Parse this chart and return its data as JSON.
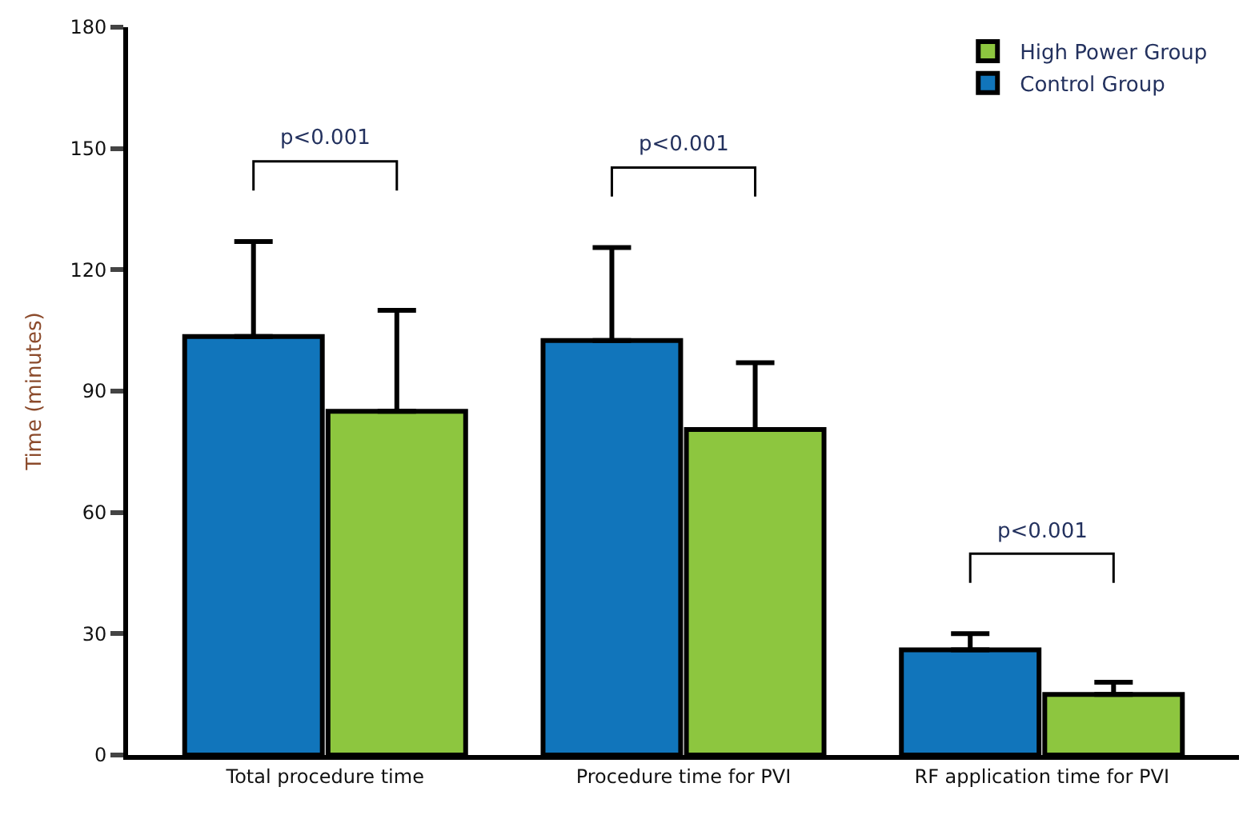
{
  "chart_data": {
    "type": "bar",
    "ylabel": "Time (minutes)",
    "categories": [
      "Total procedure time",
      "Procedure time for PVI",
      "RF application time for PVI"
    ],
    "series": [
      {
        "name": "Control Group",
        "color": "#1175bb",
        "values": [
          103.5,
          102.5,
          26
        ],
        "errors": [
          [
            103.5,
            127
          ],
          [
            102.5,
            125.5
          ],
          [
            26,
            30
          ]
        ]
      },
      {
        "name": "High Power Group",
        "color": "#8dc63f",
        "values": [
          85,
          80.5,
          15
        ],
        "errors": [
          [
            85,
            110
          ],
          [
            80.5,
            97
          ],
          [
            15,
            18
          ]
        ]
      }
    ],
    "ylim": [
      0,
      180
    ],
    "yticks": [
      0,
      30,
      60,
      90,
      120,
      150,
      180
    ],
    "legend": "top right",
    "annotations": [
      "p<0.001",
      "p<0.001",
      "p<0.001"
    ]
  }
}
